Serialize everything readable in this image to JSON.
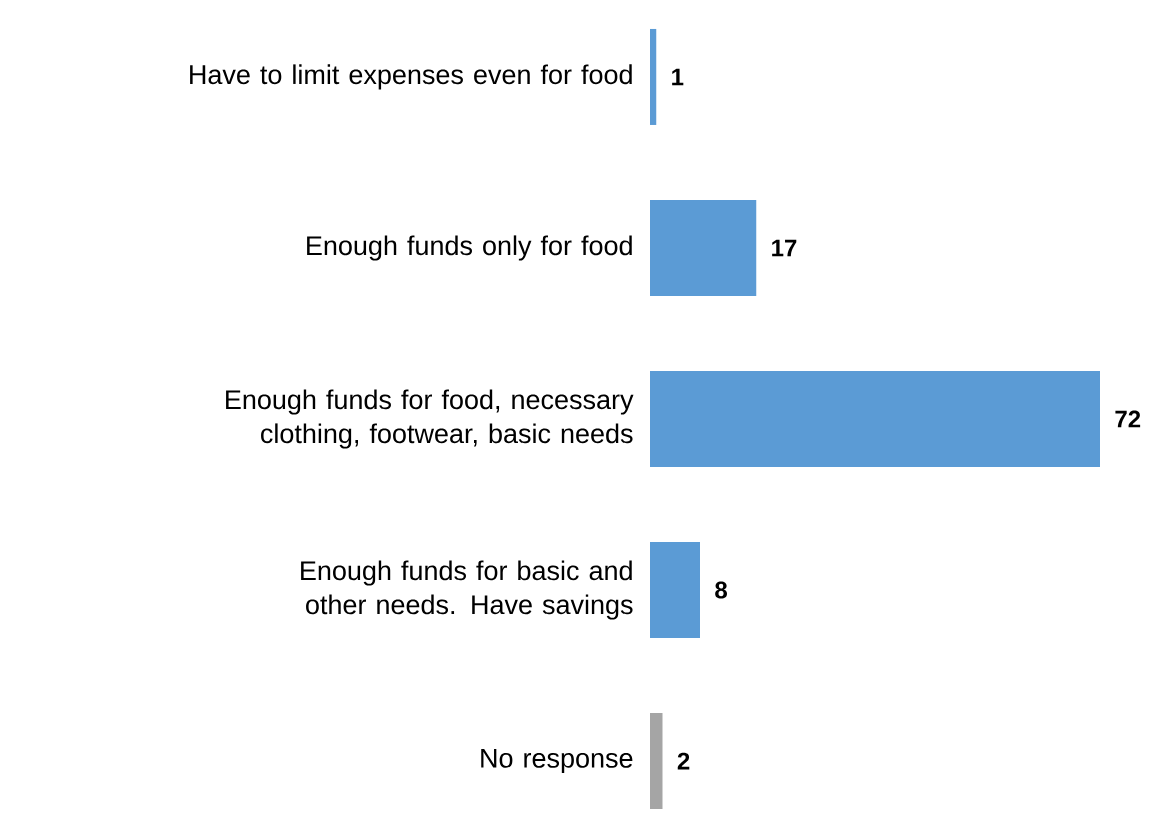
{
  "chart_data": {
    "type": "bar",
    "orientation": "horizontal",
    "categories": [
      "Have to limit expenses even for food",
      "Enough funds only for food",
      "Enough funds for food, necessary clothing, footwear, basic needs",
      "Enough funds for basic and other needs. Have savings",
      "No response"
    ],
    "values": [
      1,
      17,
      72,
      8,
      2
    ],
    "colors": [
      "#5b9bd5",
      "#5b9bd5",
      "#5b9bd5",
      "#5b9bd5",
      "#a5a5a5"
    ],
    "data_labels": true
  }
}
